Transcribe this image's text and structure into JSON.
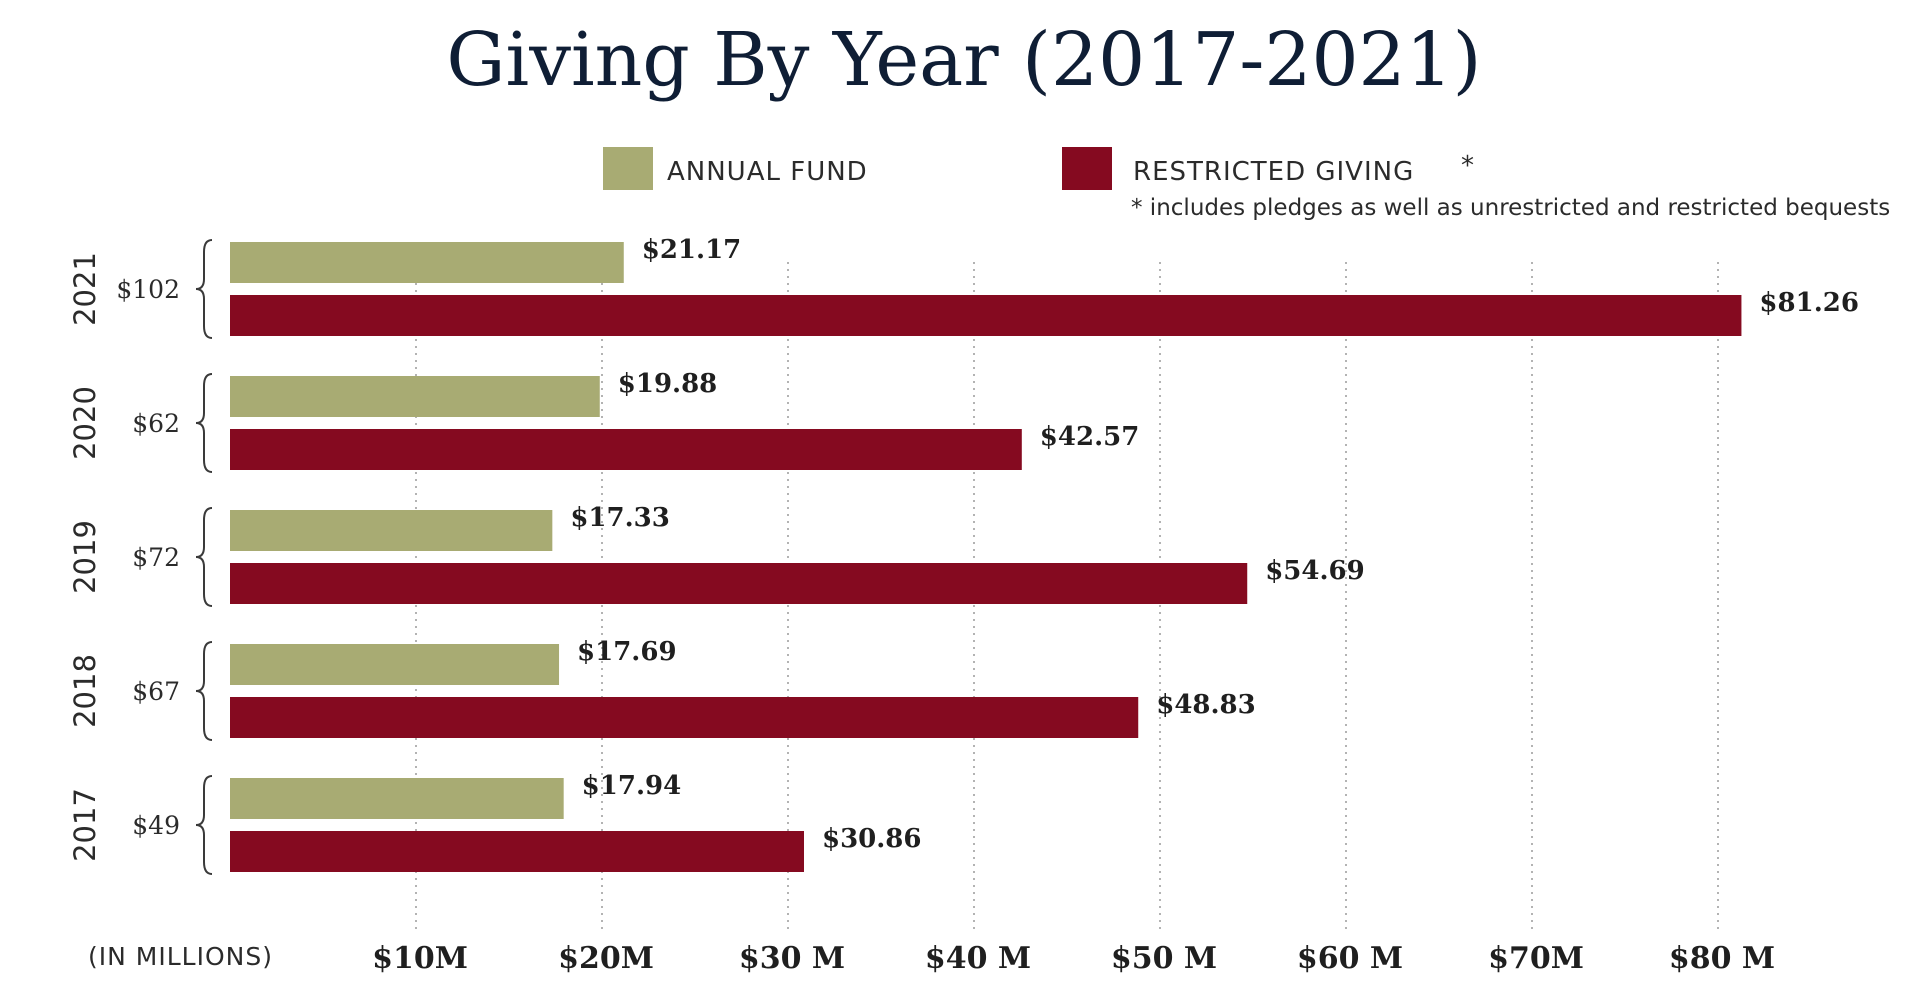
{
  "chart_data": {
    "type": "bar",
    "orientation": "horizontal",
    "title": "Giving By Year (2017-2021)",
    "unit_note": "(IN MILLIONS)",
    "categories": [
      "2021",
      "2020",
      "2019",
      "2018",
      "2017"
    ],
    "totals": [
      "$102",
      "$62",
      "$72",
      "$67",
      "$49"
    ],
    "series": [
      {
        "name": "ANNUAL FUND",
        "color": "#a8ab73",
        "values": [
          21.17,
          19.88,
          17.33,
          17.69,
          17.94
        ],
        "labels": [
          "$21.17",
          "$19.88",
          "$17.33",
          "$17.69",
          "$17.94"
        ]
      },
      {
        "name": "RESTRICTED GIVING",
        "color": "#850a20",
        "values": [
          81.26,
          42.57,
          54.69,
          48.83,
          30.86
        ],
        "labels": [
          "$81.26",
          "$42.57",
          "$54.69",
          "$48.83",
          "$30.86"
        ]
      }
    ],
    "legend_asterisk": "*",
    "footnote": "* includes pledges as well as unrestricted and restricted bequests",
    "xlim": [
      0,
      80
    ],
    "x_ticks": [
      10,
      20,
      30,
      40,
      50,
      60,
      70,
      80
    ],
    "x_tick_labels": [
      "$10M",
      "$20M",
      "$30 M",
      "$40 M",
      "$50 M",
      "$60 M",
      "$70M",
      "$80 M"
    ],
    "legend_position": "top",
    "grid": true
  }
}
